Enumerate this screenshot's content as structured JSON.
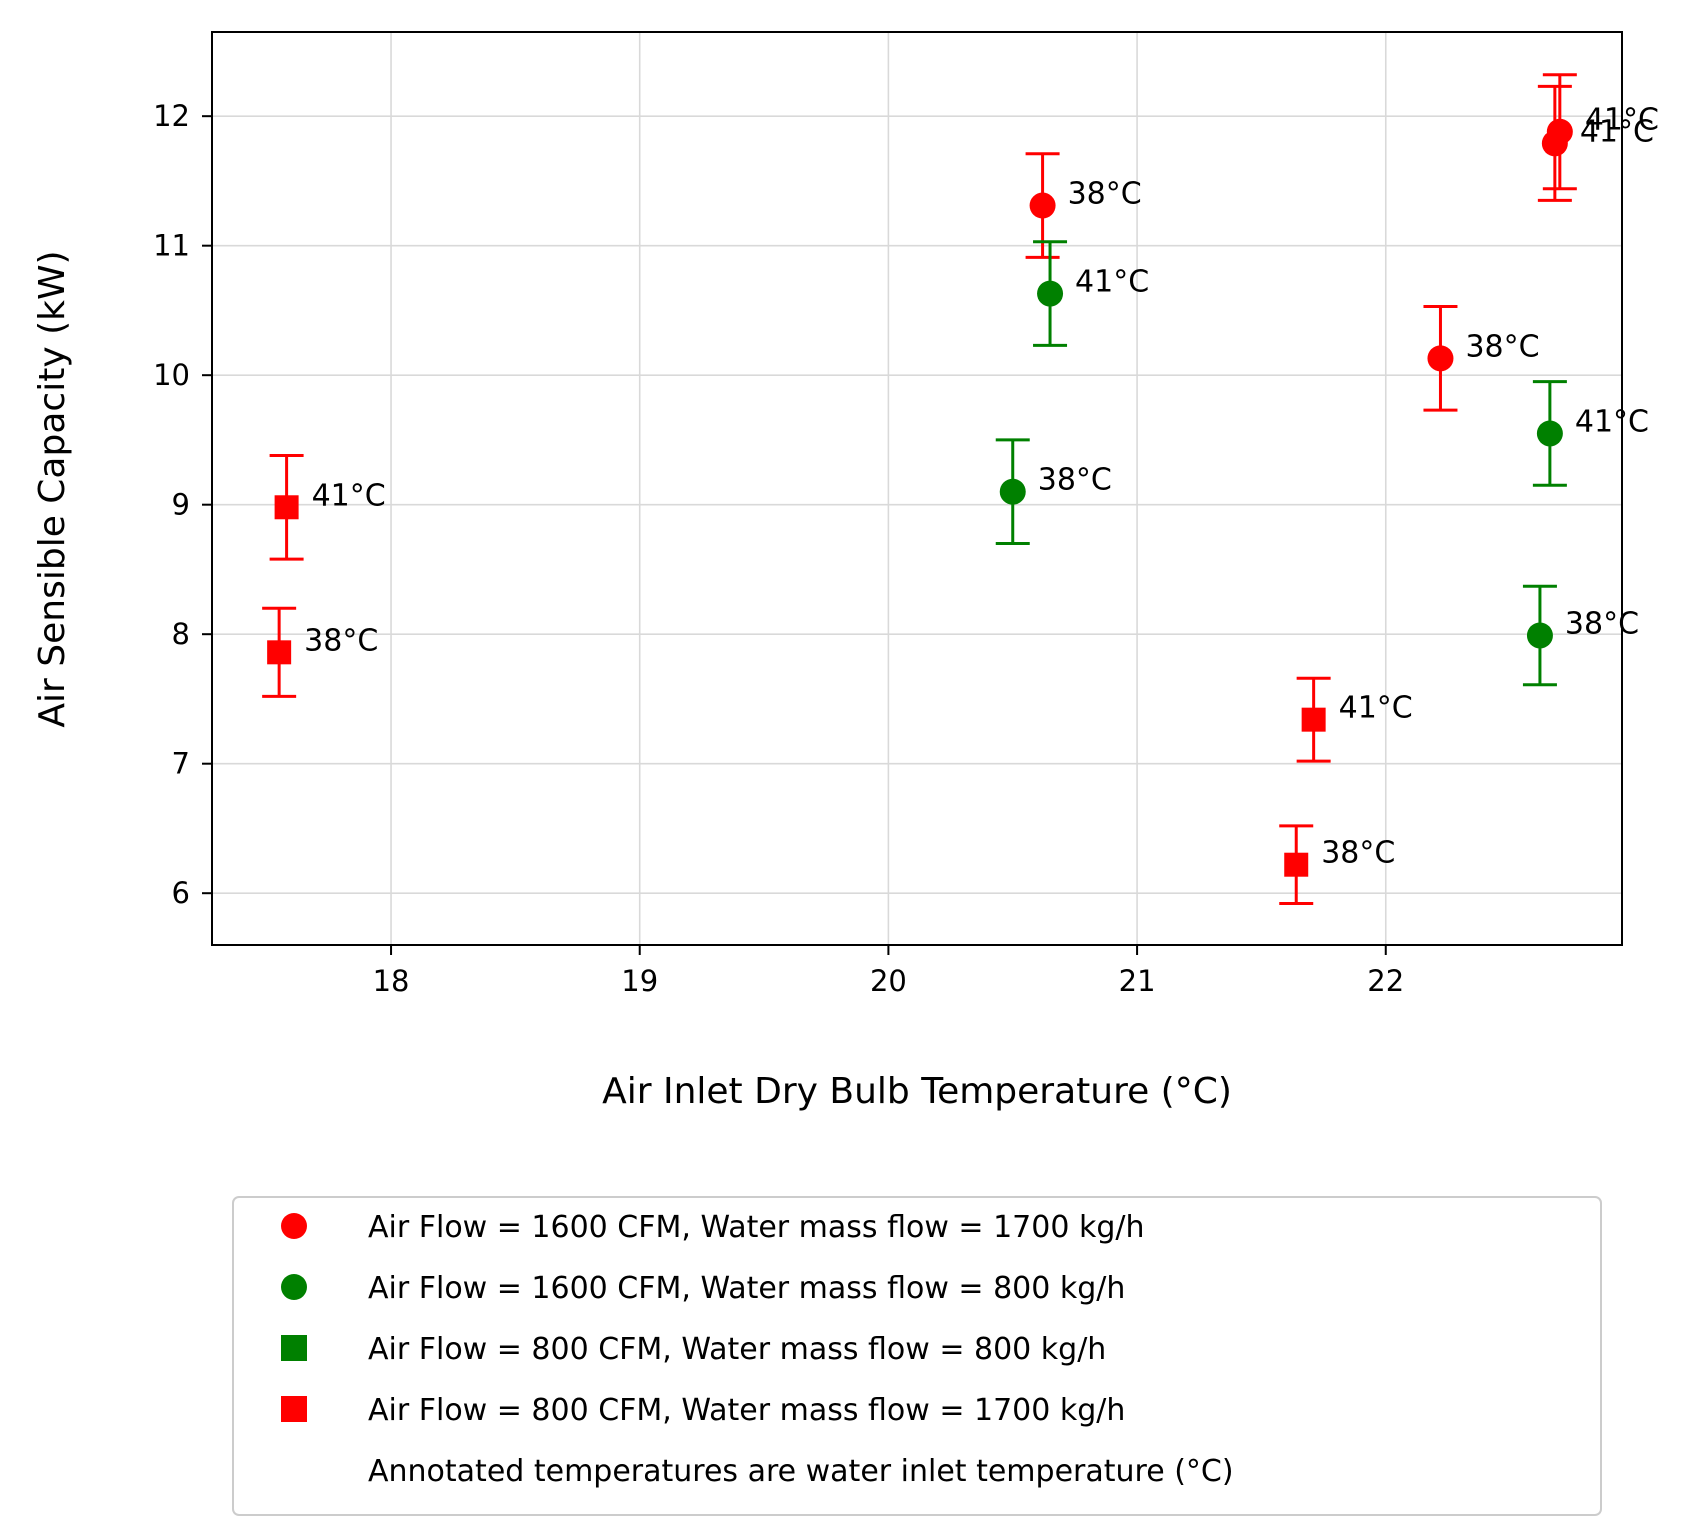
{
  "chart_data": {
    "type": "scatter",
    "xlabel": "Air Inlet Dry Bulb Temperature (°C)",
    "ylabel": "Air Sensible Capacity (kW)",
    "xlim": [
      17.28,
      22.95
    ],
    "ylim": [
      5.6,
      12.65
    ],
    "xticks": [
      18,
      19,
      20,
      21,
      22
    ],
    "yticks": [
      6,
      7,
      8,
      9,
      10,
      11,
      12
    ],
    "grid": true,
    "legend_position": "below-plot",
    "series": [
      {
        "name": "Air Flow = 1600 CFM, Water mass flow = 1700 kg/h",
        "marker": "circle",
        "color": "#ff0000",
        "points": [
          {
            "x": 20.62,
            "y": 11.31,
            "err": 0.4,
            "label": "38°C"
          },
          {
            "x": 22.22,
            "y": 10.13,
            "err": 0.4,
            "label": "38°C"
          },
          {
            "x": 22.7,
            "y": 11.88,
            "err": 0.44,
            "label": "41°C"
          },
          {
            "x": 22.68,
            "y": 11.79,
            "err": 0.44,
            "label": "41°C"
          }
        ]
      },
      {
        "name": "Air Flow = 1600 CFM, Water mass flow = 800 kg/h",
        "marker": "circle",
        "color": "#008000",
        "points": [
          {
            "x": 20.65,
            "y": 10.63,
            "err": 0.4,
            "label": "41°C"
          },
          {
            "x": 20.5,
            "y": 9.1,
            "err": 0.4,
            "label": "38°C"
          },
          {
            "x": 22.66,
            "y": 9.55,
            "err": 0.4,
            "label": "41°C"
          },
          {
            "x": 22.62,
            "y": 7.99,
            "err": 0.38,
            "label": "38°C"
          }
        ]
      },
      {
        "name": "Air Flow = 800 CFM, Water mass flow = 800 kg/h",
        "marker": "square",
        "color": "#008000",
        "points": []
      },
      {
        "name": "Air Flow = 800 CFM, Water mass flow = 1700 kg/h",
        "marker": "square",
        "color": "#ff0000",
        "points": [
          {
            "x": 17.58,
            "y": 8.98,
            "err": 0.4,
            "label": "41°C"
          },
          {
            "x": 17.55,
            "y": 7.86,
            "err": 0.34,
            "label": "38°C"
          },
          {
            "x": 21.71,
            "y": 7.34,
            "err": 0.32,
            "label": "41°C"
          },
          {
            "x": 21.64,
            "y": 6.22,
            "err": 0.3,
            "label": "38°C"
          }
        ]
      }
    ],
    "legend_note": "Annotated temperatures are water inlet temperature (°C)"
  }
}
